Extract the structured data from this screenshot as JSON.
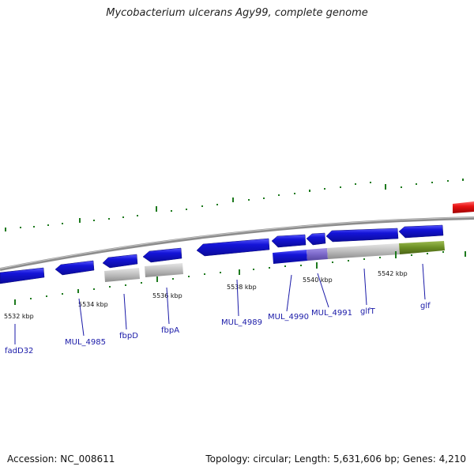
{
  "title": "Mycobacterium ulcerans Agy99, complete genome",
  "footer": {
    "accession": "Accession: NC_008611",
    "topology": "Topology: circular; Length: 5,631,606 bp; Genes: 4,210"
  },
  "ticks": [
    "5532 kbp",
    "5534 kbp",
    "5536 kbp",
    "5538 kbp",
    "5540 kbp",
    "5542 kbp"
  ],
  "genes": [
    "fadD32",
    "MUL_4985",
    "fbpD",
    "fbpA",
    "MUL_4989",
    "MUL_4990",
    "MUL_4991",
    "glfT",
    "glf"
  ],
  "colors": {
    "cds": "#1414d8",
    "gene": "#bdbdbd",
    "highlight_red": "#e81414",
    "highlight_green": "#6b8e23",
    "highlight_purple": "#7b68c8",
    "gc_dots": "#1e7a1e",
    "backbone": "#8c8c8c",
    "label": "#1a1aa8"
  }
}
